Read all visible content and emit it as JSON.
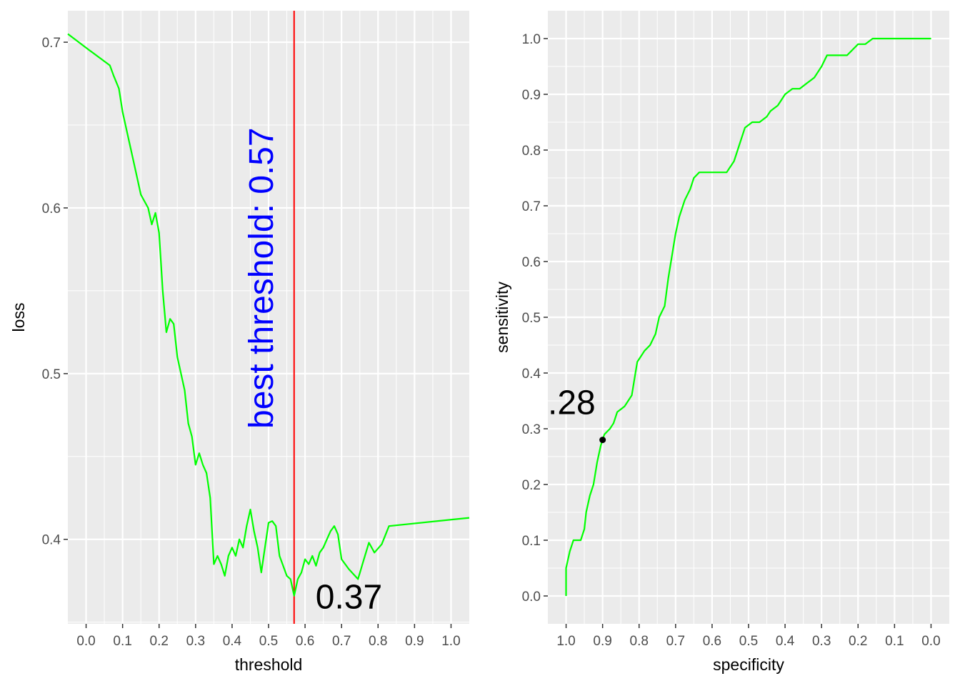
{
  "chart_data": [
    {
      "type": "line",
      "xlabel": "threshold",
      "ylabel": "loss",
      "xlim": [
        -0.05,
        1.05
      ],
      "ylim": [
        0.349,
        0.719
      ],
      "x_ticks": [
        "0.0",
        "0.1",
        "0.2",
        "0.3",
        "0.4",
        "0.5",
        "0.6",
        "0.7",
        "0.8",
        "0.9",
        "1.0"
      ],
      "y_ticks": [
        "0.4",
        "0.5",
        "0.6",
        "0.7"
      ],
      "grid": true,
      "line_color": "#00ff00",
      "series": [
        {
          "x": [
            -0.05,
            0.01,
            0.065,
            0.075,
            0.09,
            0.1,
            0.11,
            0.13,
            0.15,
            0.17,
            0.18,
            0.19,
            0.2,
            0.21,
            0.22,
            0.23,
            0.24,
            0.25,
            0.26,
            0.27,
            0.28,
            0.29,
            0.3,
            0.31,
            0.32,
            0.33,
            0.34,
            0.35,
            0.36,
            0.37,
            0.38,
            0.39,
            0.4,
            0.41,
            0.42,
            0.43,
            0.44,
            0.45,
            0.46,
            0.47,
            0.48,
            0.49,
            0.5,
            0.51,
            0.52,
            0.53,
            0.54,
            0.55,
            0.56,
            0.57,
            0.58,
            0.59,
            0.6,
            0.61,
            0.62,
            0.63,
            0.64,
            0.65,
            0.66,
            0.67,
            0.68,
            0.69,
            0.7,
            0.72,
            0.745,
            0.76,
            0.775,
            0.79,
            0.81,
            0.83,
            1.05
          ],
          "y": [
            0.705,
            0.695,
            0.686,
            0.68,
            0.672,
            0.658,
            0.648,
            0.628,
            0.608,
            0.6,
            0.59,
            0.597,
            0.585,
            0.55,
            0.525,
            0.533,
            0.53,
            0.51,
            0.5,
            0.49,
            0.47,
            0.462,
            0.445,
            0.452,
            0.445,
            0.44,
            0.425,
            0.385,
            0.39,
            0.385,
            0.378,
            0.39,
            0.395,
            0.39,
            0.4,
            0.395,
            0.408,
            0.418,
            0.405,
            0.395,
            0.38,
            0.395,
            0.41,
            0.411,
            0.408,
            0.39,
            0.384,
            0.378,
            0.376,
            0.366,
            0.376,
            0.38,
            0.388,
            0.385,
            0.39,
            0.384,
            0.392,
            0.395,
            0.4,
            0.405,
            0.408,
            0.403,
            0.388,
            0.382,
            0.376,
            0.387,
            0.398,
            0.392,
            0.397,
            0.408,
            0.413
          ]
        }
      ],
      "annotations": [
        {
          "text": "best threshold: 0.57",
          "x": 0.57,
          "color": "#0000ff",
          "rotation": "vertical"
        },
        {
          "text": "0.37",
          "x": 0.57,
          "y": 0.366,
          "color": "#000000"
        }
      ],
      "vline": {
        "x": 0.57,
        "color": "#ff0000"
      }
    },
    {
      "type": "line",
      "xlabel": "specificity",
      "ylabel": "sensitivity",
      "xlim": [
        1.05,
        -0.05
      ],
      "ylim": [
        -0.05,
        1.05
      ],
      "x_ticks": [
        "1.0",
        "0.9",
        "0.8",
        "0.7",
        "0.6",
        "0.5",
        "0.4",
        "0.3",
        "0.2",
        "0.1",
        "0.0"
      ],
      "y_ticks": [
        "0.0",
        "0.1",
        "0.2",
        "0.3",
        "0.4",
        "0.5",
        "0.6",
        "0.7",
        "0.8",
        "0.9",
        "1.0"
      ],
      "grid": true,
      "line_color": "#00ff00",
      "series": [
        {
          "x": [
            1.0,
            1.0,
            0.99,
            0.98,
            0.975,
            0.96,
            0.95,
            0.945,
            0.935,
            0.925,
            0.915,
            0.905,
            0.9,
            0.895,
            0.88,
            0.87,
            0.86,
            0.84,
            0.83,
            0.82,
            0.81,
            0.805,
            0.795,
            0.785,
            0.77,
            0.755,
            0.745,
            0.73,
            0.72,
            0.71,
            0.7,
            0.69,
            0.675,
            0.66,
            0.65,
            0.635,
            0.62,
            0.6,
            0.58,
            0.56,
            0.54,
            0.52,
            0.51,
            0.49,
            0.47,
            0.45,
            0.44,
            0.42,
            0.4,
            0.38,
            0.36,
            0.34,
            0.32,
            0.3,
            0.285,
            0.27,
            0.25,
            0.23,
            0.2,
            0.18,
            0.16,
            0.14,
            0.12,
            0.0
          ],
          "y": [
            0.0,
            0.05,
            0.08,
            0.1,
            0.1,
            0.1,
            0.12,
            0.15,
            0.18,
            0.2,
            0.24,
            0.27,
            0.28,
            0.29,
            0.3,
            0.31,
            0.33,
            0.34,
            0.35,
            0.36,
            0.4,
            0.42,
            0.43,
            0.44,
            0.45,
            0.47,
            0.5,
            0.52,
            0.57,
            0.61,
            0.65,
            0.68,
            0.71,
            0.73,
            0.75,
            0.76,
            0.76,
            0.76,
            0.76,
            0.76,
            0.78,
            0.82,
            0.84,
            0.85,
            0.85,
            0.86,
            0.87,
            0.88,
            0.9,
            0.91,
            0.91,
            0.92,
            0.93,
            0.95,
            0.97,
            0.97,
            0.97,
            0.97,
            0.99,
            0.99,
            1.0,
            1.0,
            1.0,
            1.0
          ]
        }
      ],
      "point": {
        "x": 0.9,
        "y": 0.28,
        "color": "#000000"
      },
      "annotations": [
        {
          "text": ".28",
          "x": 0.9,
          "y": 0.28,
          "color": "#000000"
        }
      ]
    }
  ]
}
